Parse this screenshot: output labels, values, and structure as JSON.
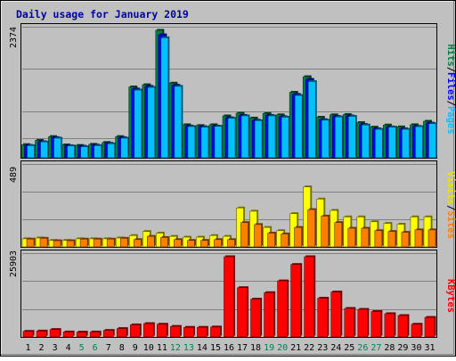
{
  "chart_data": {
    "type": "bar",
    "title": "Daily usage for January 2019",
    "categories": [
      "1",
      "2",
      "3",
      "4",
      "5",
      "6",
      "7",
      "8",
      "9",
      "10",
      "11",
      "12",
      "13",
      "14",
      "15",
      "16",
      "17",
      "18",
      "19",
      "20",
      "21",
      "22",
      "23",
      "24",
      "25",
      "26",
      "27",
      "28",
      "29",
      "30",
      "31"
    ],
    "weekend_days": [
      "5",
      "6",
      "12",
      "13",
      "19",
      "20",
      "26",
      "27"
    ],
    "panels": [
      {
        "id": "top",
        "ymax": 2374,
        "ymax_label": "2374",
        "right_label": [
          "Hits",
          "/",
          "Files",
          "/",
          "Pages"
        ],
        "right_label_colors": [
          "#008040",
          "#000000",
          "#0000ff",
          "#000000",
          "#00c0ff"
        ],
        "series": [
          {
            "name": "Hits",
            "color": "#008040",
            "values": [
              245,
              325,
              395,
              240,
              230,
              250,
              285,
              395,
              1320,
              1360,
              2374,
              1390,
              615,
              600,
              615,
              780,
              830,
              740,
              825,
              800,
              1220,
              1510,
              755,
              800,
              805,
              655,
              570,
              610,
              575,
              615,
              680
            ]
          },
          {
            "name": "Files",
            "color": "#0000ff",
            "values": [
              230,
              300,
              375,
              225,
              215,
              235,
              270,
              375,
              1280,
              1330,
              2290,
              1350,
              590,
              580,
              590,
              745,
              790,
              700,
              790,
              765,
              1180,
              1460,
              710,
              770,
              780,
              620,
              540,
              575,
              540,
              585,
              645
            ]
          },
          {
            "name": "Pages",
            "color": "#00c0ff",
            "values": [
              225,
              295,
              365,
              220,
              205,
              225,
              260,
              365,
              1260,
              1310,
              2235,
              1330,
              580,
              570,
              585,
              735,
              780,
              690,
              780,
              755,
              1160,
              1420,
              700,
              760,
              770,
              610,
              530,
              570,
              530,
              580,
              635
            ]
          }
        ]
      },
      {
        "id": "middle",
        "ymax": 489,
        "ymax_label": "489",
        "right_label": [
          "Visits",
          "/",
          "Sites"
        ],
        "right_label_colors": [
          "#f0e000",
          "#000000",
          "#ff8000"
        ],
        "series": [
          {
            "name": "Visits",
            "color": "#ffff00",
            "values": [
              50,
              55,
              40,
              40,
              50,
              50,
              50,
              55,
              70,
              95,
              85,
              65,
              60,
              60,
              70,
              65,
              240,
              220,
              120,
              100,
              205,
              370,
              295,
              225,
              185,
              185,
              155,
              145,
              140,
              185,
              185
            ]
          },
          {
            "name": "Sites",
            "color": "#ff8000",
            "values": [
              48,
              53,
              38,
              38,
              48,
              48,
              48,
              53,
              45,
              65,
              58,
              45,
              40,
              40,
              45,
              45,
              150,
              138,
              85,
              80,
              120,
              230,
              190,
              150,
              115,
              115,
              100,
              95,
              90,
              105,
              105
            ]
          }
        ]
      },
      {
        "id": "bottom",
        "ymax": 25903,
        "ymax_label": "25903",
        "right_label": [
          "KBytes"
        ],
        "right_label_colors": [
          "#ff0000"
        ],
        "series": [
          {
            "name": "KBytes",
            "color": "#ff0000",
            "values": [
              1800,
              1900,
              2400,
              1600,
              1550,
              1600,
              2100,
              2700,
              3900,
              4300,
              4100,
              3400,
              3100,
              3100,
              3200,
              25903,
              15900,
              12200,
              14300,
              18100,
              23400,
              25903,
              12500,
              14500,
              9200,
              8900,
              8200,
              7500,
              6900,
              4100,
              6300
            ]
          }
        ]
      }
    ],
    "grid": true
  }
}
